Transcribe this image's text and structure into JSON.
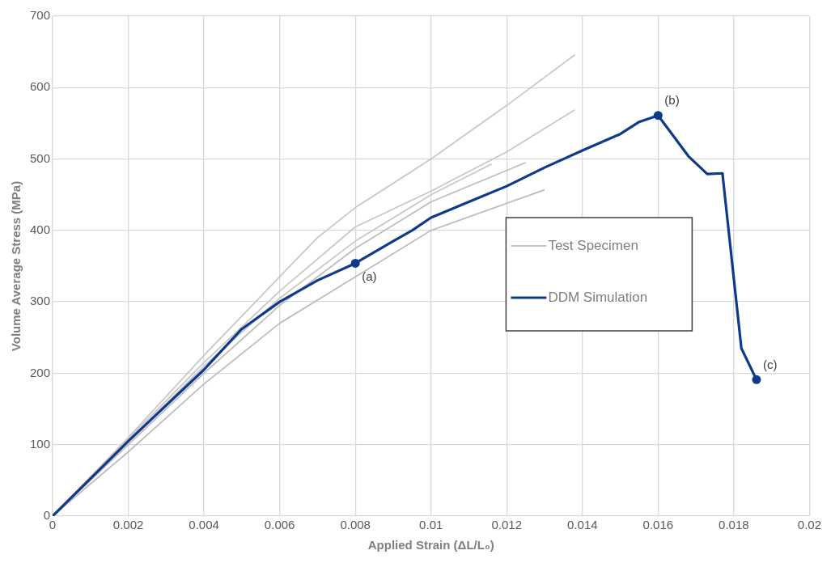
{
  "chart_data": {
    "type": "line",
    "xlabel": "Applied Strain (ΔL/L₀)",
    "ylabel": "Volume Average Stress (MPa)",
    "xlim": [
      0,
      0.02
    ],
    "xticks": [
      0,
      0.002,
      0.004,
      0.006,
      0.008,
      0.01,
      0.012,
      0.014,
      0.016,
      0.018,
      0.02
    ],
    "ylim": [
      0,
      700
    ],
    "yticks": [
      0,
      100,
      200,
      300,
      400,
      500,
      600,
      700
    ],
    "grid": true,
    "legend": "right",
    "series": [
      {
        "name": "Test Specimen",
        "color": "#c8c8c8",
        "x": [
          0,
          0.002,
          0.004,
          0.006,
          0.007,
          0.008,
          0.01,
          0.012,
          0.0138
        ],
        "values": [
          0,
          110,
          225,
          335,
          390,
          432,
          500,
          575,
          646
        ]
      },
      {
        "color": "#c8c8c8",
        "x": [
          0,
          0.002,
          0.004,
          0.006,
          0.008,
          0.01,
          0.012,
          0.0138
        ],
        "values": [
          0,
          108,
          215,
          315,
          405,
          455,
          510,
          569
        ]
      },
      {
        "color": "#c8c8c8",
        "x": [
          0,
          0.002,
          0.004,
          0.006,
          0.008,
          0.01,
          0.0116
        ],
        "values": [
          0,
          105,
          210,
          305,
          385,
          450,
          493
        ]
      },
      {
        "color": "#bdbdbd",
        "x": [
          0,
          0.002,
          0.004,
          0.006,
          0.008,
          0.01,
          0.0125
        ],
        "values": [
          0,
          100,
          200,
          295,
          375,
          440,
          495
        ]
      },
      {
        "color": "#bdbdbd",
        "x": [
          0,
          0.002,
          0.004,
          0.006,
          0.008,
          0.01,
          0.013
        ],
        "values": [
          0,
          90,
          185,
          270,
          335,
          400,
          457
        ]
      },
      {
        "name": "DDM Simulation",
        "color": "#0f3a8c",
        "x": [
          0,
          0.002,
          0.004,
          0.005,
          0.006,
          0.007,
          0.008,
          0.009,
          0.0095,
          0.01,
          0.011,
          0.012,
          0.013,
          0.014,
          0.015,
          0.0155,
          0.016,
          0.0168,
          0.0173,
          0.0177,
          0.0182,
          0.0186
        ],
        "values": [
          0,
          105,
          205,
          262,
          300,
          330,
          354,
          385,
          400,
          418,
          440,
          462,
          488,
          512,
          535,
          552,
          561,
          504,
          479,
          480,
          235,
          191
        ]
      }
    ],
    "annotations": [
      {
        "text": "(a)",
        "x": 0.008,
        "y": 354
      },
      {
        "text": "(b)",
        "x": 0.016,
        "y": 561
      },
      {
        "text": "(c)",
        "x": 0.0186,
        "y": 191
      }
    ]
  }
}
